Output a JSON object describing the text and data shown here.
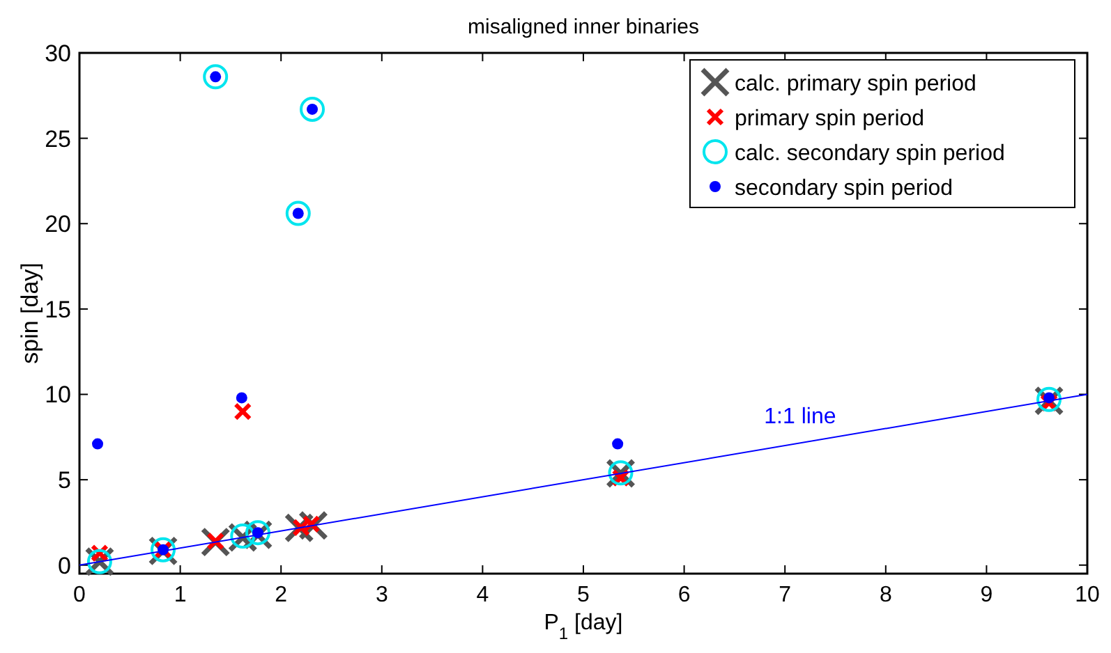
{
  "chart_data": {
    "type": "scatter",
    "title": "misaligned inner binaries",
    "xlabel": "P$_{1}$ [day]",
    "ylabel": "spin [day]",
    "xlim": [
      0,
      10
    ],
    "xticks": [
      0,
      1,
      2,
      3,
      4,
      5,
      6,
      7,
      8,
      9,
      10
    ],
    "ylim": [
      -0.5,
      30
    ],
    "yticks": [
      0,
      5,
      10,
      15,
      20,
      25,
      30
    ],
    "grid": false,
    "legend": "top right",
    "series": [
      {
        "name": "calc. primary spin period",
        "color": "#555555",
        "marker": "cross",
        "x": [
          0.2,
          0.83,
          1.35,
          1.62,
          1.77,
          2.18,
          2.32,
          5.37,
          9.62
        ],
        "values": [
          0.2,
          0.83,
          1.35,
          1.62,
          1.77,
          2.18,
          2.32,
          5.37,
          9.62
        ]
      },
      {
        "name": "primary spin period",
        "color": "#ff0000",
        "marker": "cross",
        "x": [
          0.2,
          0.83,
          1.35,
          1.62,
          2.2,
          2.3,
          5.37,
          9.62
        ],
        "values": [
          0.7,
          0.9,
          1.4,
          9.0,
          2.2,
          2.4,
          5.1,
          9.5
        ]
      },
      {
        "name": "calc. secondary spin period",
        "color": "#00e5ee",
        "marker": "circle",
        "x": [
          0.2,
          0.83,
          1.62,
          1.77,
          5.37,
          9.62,
          1.35,
          2.31,
          2.17
        ],
        "values": [
          0.2,
          0.9,
          1.7,
          1.9,
          5.4,
          9.7,
          28.6,
          26.7,
          20.6
        ]
      },
      {
        "name": "secondary spin period",
        "color": "#0000ff",
        "marker": "circle",
        "x": [
          0.18,
          0.83,
          1.77,
          1.61,
          5.34,
          9.62,
          1.35,
          2.31,
          2.17
        ],
        "values": [
          7.1,
          0.9,
          1.9,
          9.8,
          7.1,
          9.8,
          28.6,
          26.7,
          20.6
        ]
      },
      {
        "name": "1:1 line",
        "type": "line",
        "color": "#0000ff",
        "marker": "none",
        "x": [
          0,
          10
        ],
        "values": [
          0,
          10
        ]
      }
    ]
  }
}
